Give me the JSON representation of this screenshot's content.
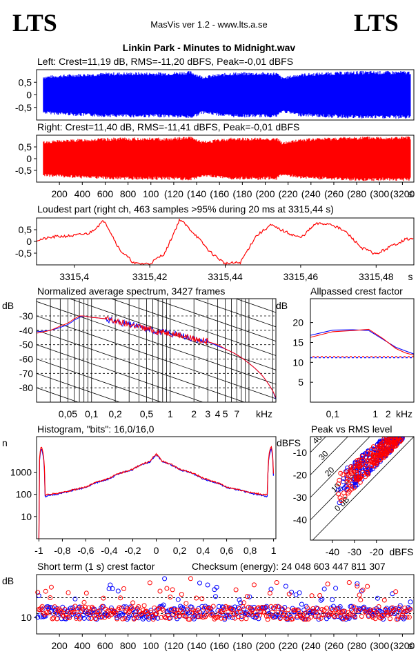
{
  "header": {
    "logo_left": "LTS",
    "logo_right": "LTS",
    "app_title": "MasVis ver 1.2 - www.lts.a.se",
    "file_title": "Linkin Park - Minutes to Midnight.wav"
  },
  "colors": {
    "left": "#0000ff",
    "right": "#ff0000",
    "grid": "#000000"
  },
  "chart_data": [
    {
      "id": "left_waveform",
      "type": "area",
      "title": "Left: Crest=11,19 dB, RMS=-11,20 dBFS, Peak=-0,01 dBFS",
      "ytick_labels": [
        "0,5",
        "0",
        "-0,5"
      ],
      "yticks": [
        0.5,
        0,
        -0.5
      ],
      "ylim": [
        -1,
        1
      ],
      "xlim": [
        0,
        3300
      ],
      "envelope_x": [
        60,
        200,
        400,
        700,
        900,
        1150,
        1350,
        1450,
        1700,
        1900,
        2100,
        2150,
        2300,
        2500,
        2800,
        3000,
        3200,
        3270
      ],
      "envelope_peak": [
        0.75,
        0.8,
        0.85,
        0.9,
        0.9,
        0.9,
        0.95,
        0.75,
        0.9,
        0.9,
        0.9,
        0.7,
        0.85,
        0.9,
        0.95,
        0.95,
        0.95,
        0.95
      ]
    },
    {
      "id": "right_waveform",
      "type": "area",
      "title": "Right: Crest=11,40 dB, RMS=-11,41 dBFS, Peak=-0,01 dBFS",
      "ytick_labels": [
        "0,5",
        "0",
        "-0,5"
      ],
      "yticks": [
        0.5,
        0,
        -0.5
      ],
      "ylim": [
        -1,
        1
      ],
      "xlim": [
        0,
        3300
      ],
      "xtick_labels": [
        "200",
        "400",
        "600",
        "800",
        "1000",
        "1200",
        "1400",
        "1600",
        "1800",
        "2000",
        "2200",
        "2400",
        "2600",
        "2800",
        "3000",
        "3200"
      ],
      "xtick_display": [
        "200",
        "400",
        "600",
        "800",
        "100",
        "(120",
        "(140",
        "(160",
        "(180",
        "(200",
        "(220",
        "(240",
        "(260",
        "(280",
        "(300",
        "(3200"
      ],
      "xunit": "s",
      "envelope_x": [
        60,
        200,
        400,
        700,
        900,
        1150,
        1350,
        1450,
        1700,
        1900,
        2100,
        2150,
        2300,
        2500,
        2800,
        3000,
        3200,
        3270
      ],
      "envelope_peak": [
        0.75,
        0.8,
        0.85,
        0.9,
        0.9,
        0.9,
        0.95,
        0.75,
        0.9,
        0.9,
        0.9,
        0.7,
        0.85,
        0.9,
        0.95,
        0.95,
        0.95,
        0.95
      ]
    },
    {
      "id": "loudest_part",
      "type": "line",
      "title": "Loudest part (right ch, 463 samples >95% during 20 ms at 3315,44 s)",
      "ytick_labels": [
        "0,5",
        "0",
        "-0,5"
      ],
      "ylim": [
        -1,
        1
      ],
      "xlim": [
        3315.39,
        3315.49
      ],
      "xtick_labels": [
        "3315,4",
        "3315,42",
        "3315,44",
        "3315,46",
        "3315,48"
      ],
      "xticks": [
        3315.4,
        3315.42,
        3315.44,
        3315.46,
        3315.48
      ],
      "xunit": "s",
      "x": [
        3315.39,
        3315.395,
        3315.4,
        3315.404,
        3315.408,
        3315.412,
        3315.416,
        3315.42,
        3315.424,
        3315.428,
        3315.432,
        3315.436,
        3315.44,
        3315.444,
        3315.448,
        3315.452,
        3315.456,
        3315.46,
        3315.464,
        3315.468,
        3315.472,
        3315.476,
        3315.48,
        3315.484,
        3315.488
      ],
      "y": [
        0.05,
        0.2,
        0.25,
        0.35,
        0.9,
        -0.35,
        -0.95,
        -0.95,
        -0.5,
        0.95,
        0.3,
        -0.45,
        -0.95,
        -0.9,
        0.2,
        0.7,
        0.4,
        0.15,
        0.75,
        0.75,
        0.4,
        -0.25,
        -0.55,
        -0.2,
        0.1
      ]
    },
    {
      "id": "avg_spectrum",
      "type": "line",
      "title": "Normalized average spectrum, 3427 frames",
      "ylabel": "dB",
      "ytick_labels": [
        "-30",
        "-40",
        "-50",
        "-60",
        "-70",
        "-80"
      ],
      "yticks": [
        -30,
        -40,
        -50,
        -60,
        -70,
        -80
      ],
      "ylim": [
        -90,
        -18
      ],
      "xscale": "log",
      "xlim": [
        0.02,
        22
      ],
      "xtick_labels": [
        "0,05",
        "0,1",
        "0,2",
        "0,5",
        "1",
        "2",
        "3",
        "4",
        "5",
        "7"
      ],
      "xticks": [
        0.05,
        0.1,
        0.2,
        0.5,
        1,
        2,
        3,
        4,
        5,
        7
      ],
      "xunit": "kHz",
      "x": [
        0.02,
        0.03,
        0.04,
        0.05,
        0.06,
        0.07,
        0.08,
        0.1,
        0.15,
        0.2,
        0.3,
        0.5,
        0.7,
        1,
        1.5,
        2,
        3,
        4,
        5,
        7,
        10,
        15,
        20,
        22
      ],
      "series": [
        {
          "name": "left",
          "values": [
            -41,
            -40,
            -38,
            -36,
            -33,
            -31,
            -30,
            -31,
            -32,
            -34,
            -36,
            -39,
            -41,
            -42,
            -44,
            -46,
            -48,
            -51,
            -53,
            -57,
            -63,
            -72,
            -82,
            -88
          ]
        },
        {
          "name": "right",
          "values": [
            -42,
            -40,
            -37,
            -35,
            -32,
            -30,
            -30,
            -31,
            -32,
            -34,
            -36,
            -39,
            -41,
            -42,
            -44,
            -46,
            -48,
            -50,
            -53,
            -57,
            -63,
            -72,
            -82,
            -87
          ]
        }
      ]
    },
    {
      "id": "allpassed_crest",
      "type": "line",
      "title": "Allpassed crest factor",
      "ylabel": "dB",
      "ytick_labels": [
        "20",
        "15",
        "10",
        "5"
      ],
      "yticks": [
        20,
        15,
        10,
        5
      ],
      "ylim": [
        0,
        26
      ],
      "xscale": "log",
      "xlim": [
        0.03,
        8
      ],
      "xtick_labels": [
        "0,1",
        "1",
        "2"
      ],
      "xticks": [
        0.1,
        1,
        2
      ],
      "xunit": "kHz",
      "x": [
        0.03,
        0.1,
        0.3,
        0.7,
        1.5,
        3,
        5,
        8
      ],
      "series": [
        {
          "name": "left",
          "values": [
            16.8,
            18.1,
            18.2,
            18.0,
            15.8,
            13.8,
            12.9,
            12.1
          ]
        },
        {
          "name": "right",
          "values": [
            16.3,
            17.7,
            18.0,
            18.3,
            16.0,
            13.5,
            12.4,
            11.8
          ]
        }
      ],
      "reference": {
        "left": 11.19,
        "right": 11.4
      }
    },
    {
      "id": "histogram",
      "type": "line",
      "title": "Histogram, \"bits\": 16,0/16,0",
      "ylabel": "n",
      "yscale": "log",
      "ytick_labels": [
        "1000",
        "100",
        "10"
      ],
      "yticks": [
        1000,
        100,
        10
      ],
      "ylim": [
        1,
        40000
      ],
      "xlim": [
        -1.02,
        1.02
      ],
      "xtick_labels": [
        "-1",
        "-0,8",
        "-0,6",
        "-0,4",
        "-0,2",
        "0",
        "0,2",
        "0,4",
        "0,6",
        "0,8",
        "1"
      ],
      "xticks": [
        -1,
        -0.8,
        -0.6,
        -0.4,
        -0.2,
        0,
        0.2,
        0.4,
        0.6,
        0.8,
        1
      ],
      "x": [
        -1.0,
        -0.98,
        -0.95,
        -0.9,
        -0.8,
        -0.6,
        -0.4,
        -0.2,
        -0.05,
        0,
        0.05,
        0.2,
        0.4,
        0.6,
        0.8,
        0.9,
        0.95,
        0.98,
        1.0
      ],
      "series": [
        {
          "name": "left",
          "values": [
            1,
            12000,
            80,
            90,
            115,
            200,
            500,
            1300,
            3000,
            6000,
            3000,
            1300,
            500,
            200,
            115,
            90,
            80,
            12000,
            1
          ]
        },
        {
          "name": "right",
          "values": [
            1,
            15000,
            95,
            100,
            120,
            210,
            520,
            1350,
            3100,
            6500,
            3100,
            1350,
            520,
            210,
            120,
            100,
            95,
            15000,
            1
          ]
        }
      ]
    },
    {
      "id": "peak_vs_rms",
      "type": "scatter",
      "title": "Peak vs RMS level",
      "ylabel": "dBFS",
      "xlabel": "dBFS",
      "ytick_labels": [
        "-10",
        "-20",
        "-30",
        "-40"
      ],
      "yticks": [
        -10,
        -20,
        -30,
        -40
      ],
      "xtick_labels": [
        "-40",
        "-30",
        "-20"
      ],
      "xticks": [
        -40,
        -30,
        -20
      ],
      "xlim": [
        -50,
        -3
      ],
      "ylim": [
        -49,
        -3
      ],
      "diagonal_labels": [
        "40",
        "30",
        "20",
        "10",
        "0 dB"
      ],
      "diagonal_offsets": [
        40,
        30,
        20,
        10,
        0
      ],
      "cloud": {
        "rms_from": -38,
        "rms_to": -8,
        "crest_min": 4,
        "crest_max": 18,
        "count": 220
      }
    },
    {
      "id": "short_term_crest",
      "type": "scatter",
      "title": "Short term (1 s) crest factor",
      "checksum_label": "Checksum (energy):  24 048 603 447 811 307",
      "ylabel": "dB",
      "ytick_labels": [
        "10"
      ],
      "yticks": [
        10
      ],
      "ylim": [
        5,
        23
      ],
      "xlim": [
        0,
        3300
      ],
      "xtick_display": [
        "200",
        "400",
        "600",
        "800",
        "100",
        "(120",
        "(140",
        "(160",
        "(180",
        "(200",
        "(220",
        "(240",
        "(260",
        "(280",
        "(300",
        "(3200"
      ],
      "xtick_labels": [
        "200",
        "400",
        "600",
        "800",
        "1000",
        "1200",
        "1400",
        "1600",
        "1800",
        "2000",
        "2200",
        "2400",
        "2600",
        "2800",
        "3000",
        "3200"
      ],
      "xunit": "s",
      "reference_lines": [
        11.19,
        16
      ],
      "points_count": 330
    }
  ]
}
